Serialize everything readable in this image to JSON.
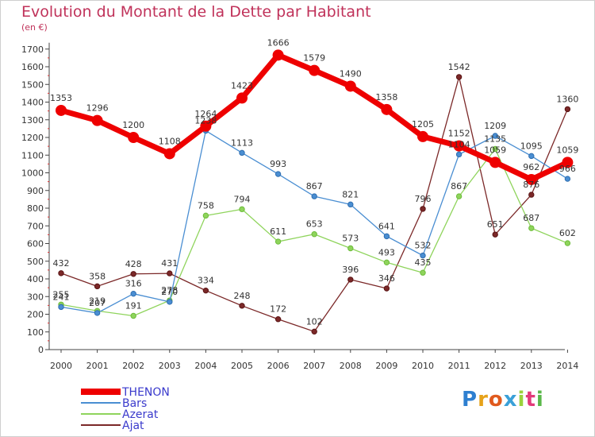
{
  "page": {
    "title": "Evolution du Montant de la Dette par Habitant",
    "unit": "(en €)",
    "brand": "Proxiti"
  },
  "chart_data": {
    "type": "line",
    "title": "Evolution du Montant de la Dette par Habitant",
    "subtitle": "(en €)",
    "xlabel": "",
    "ylabel": "",
    "x": [
      2000,
      2001,
      2002,
      2003,
      2004,
      2005,
      2006,
      2007,
      2008,
      2009,
      2010,
      2011,
      2012,
      2013,
      2014
    ],
    "ylim": [
      0,
      1700
    ],
    "yticks": [
      0,
      100,
      200,
      300,
      400,
      500,
      600,
      700,
      800,
      900,
      1000,
      1100,
      1200,
      1300,
      1400,
      1500,
      1600,
      1700
    ],
    "grid": false,
    "legend": "bottom-left",
    "series": [
      {
        "name": "THENON",
        "color": "#ee0000",
        "values": [
          1353,
          1296,
          1200,
          1108,
          1264,
          1423,
          1666,
          1579,
          1490,
          1358,
          1205,
          1152,
          1059,
          962,
          1059
        ]
      },
      {
        "name": "Bars",
        "color": "#4a8ed2",
        "values": [
          241,
          207,
          316,
          270,
          1238,
          1113,
          993,
          867,
          821,
          641,
          532,
          1104,
          1209,
          1095,
          966
        ]
      },
      {
        "name": "Azerat",
        "color": "#8fd45c",
        "values": [
          255,
          219,
          191,
          278,
          758,
          794,
          611,
          653,
          573,
          493,
          435,
          867,
          1135,
          687,
          602
        ]
      },
      {
        "name": "Ajat",
        "color": "#7b2828",
        "values": [
          432,
          358,
          428,
          431,
          334,
          248,
          172,
          102,
          396,
          346,
          796,
          1542,
          651,
          876,
          1360
        ]
      }
    ]
  }
}
